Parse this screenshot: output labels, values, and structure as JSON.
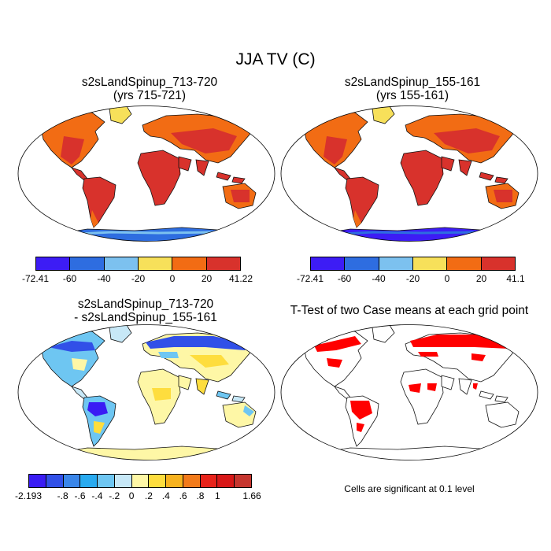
{
  "figure": {
    "title": "JJA TV (C)"
  },
  "panels": {
    "top_left": {
      "title_line1": "s2sLandSpinup_713-720",
      "title_line2": "(yrs 715-721)",
      "colorbar": {
        "colors": [
          "#3d1cf5",
          "#2e6de0",
          "#7cc1ef",
          "#f7e05a",
          "#f26c14",
          "#d8322c"
        ],
        "ticks": [
          "-72.41",
          "-60",
          "-40",
          "-20",
          "0",
          "20",
          "41.22"
        ]
      }
    },
    "top_right": {
      "title_line1": "s2sLandSpinup_155-161",
      "title_line2": "(yrs 155-161)",
      "colorbar": {
        "colors": [
          "#3d1cf5",
          "#2e6de0",
          "#7cc1ef",
          "#f7e05a",
          "#f26c14",
          "#d8322c"
        ],
        "ticks": [
          "-72.41",
          "-60",
          "-40",
          "-20",
          "0",
          "20",
          "41.1"
        ]
      }
    },
    "bottom_left": {
      "title_line1": "s2sLandSpinup_713-720",
      "title_line2": "- s2sLandSpinup_155-161",
      "colorbar": {
        "colors": [
          "#3a1cf4",
          "#3150e8",
          "#3a86ea",
          "#28aaf0",
          "#6ec6f2",
          "#c7e8f7",
          "#fef7a6",
          "#fedd3e",
          "#f7b21e",
          "#f27a1a",
          "#e8231a",
          "#d81818",
          "#c6362f"
        ],
        "ticks": [
          "-2.193",
          "-.8",
          "-.6",
          "-.4",
          "-.2",
          "0",
          ".2",
          ".4",
          ".6",
          ".8",
          "1",
          "1.66"
        ]
      }
    },
    "bottom_right": {
      "title": "T-Test of two Case means at each grid point",
      "note": "Cells are significant at 0.1 level"
    }
  }
}
